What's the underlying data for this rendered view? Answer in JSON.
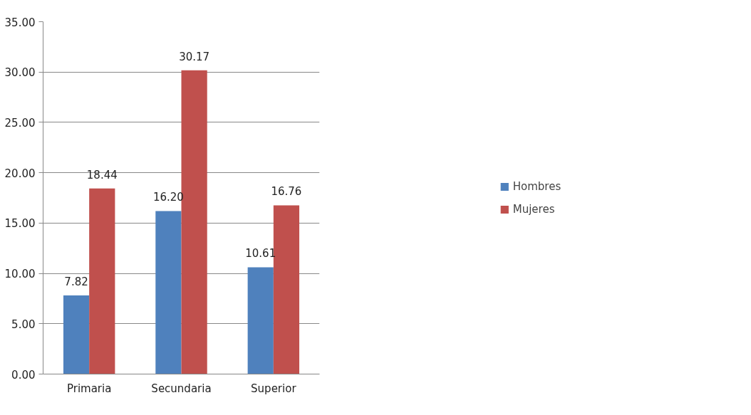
{
  "chart_data": {
    "type": "bar",
    "categories": [
      "Primaria",
      "Secundaria",
      "Superior"
    ],
    "series": [
      {
        "name": "Hombres",
        "color": "#4f81bd",
        "values": [
          7.82,
          16.2,
          10.61
        ],
        "value_labels": [
          "7.82",
          "16.20",
          "10.61"
        ]
      },
      {
        "name": "Mujeres",
        "color": "#c0504d",
        "values": [
          18.44,
          30.17,
          16.76
        ],
        "value_labels": [
          "18.44",
          "30.17",
          "16.76"
        ]
      }
    ],
    "ylim": [
      0,
      35
    ],
    "yticks": [
      {
        "value": 0,
        "label": "0.00"
      },
      {
        "value": 5,
        "label": "5.00"
      },
      {
        "value": 10,
        "label": "10.00"
      },
      {
        "value": 15,
        "label": "15.00"
      },
      {
        "value": 20,
        "label": "20.00"
      },
      {
        "value": 25,
        "label": "25.00"
      },
      {
        "value": 30,
        "label": "30.00"
      },
      {
        "value": 35,
        "label": "35.00"
      }
    ],
    "grid": "y",
    "legend": "right"
  }
}
